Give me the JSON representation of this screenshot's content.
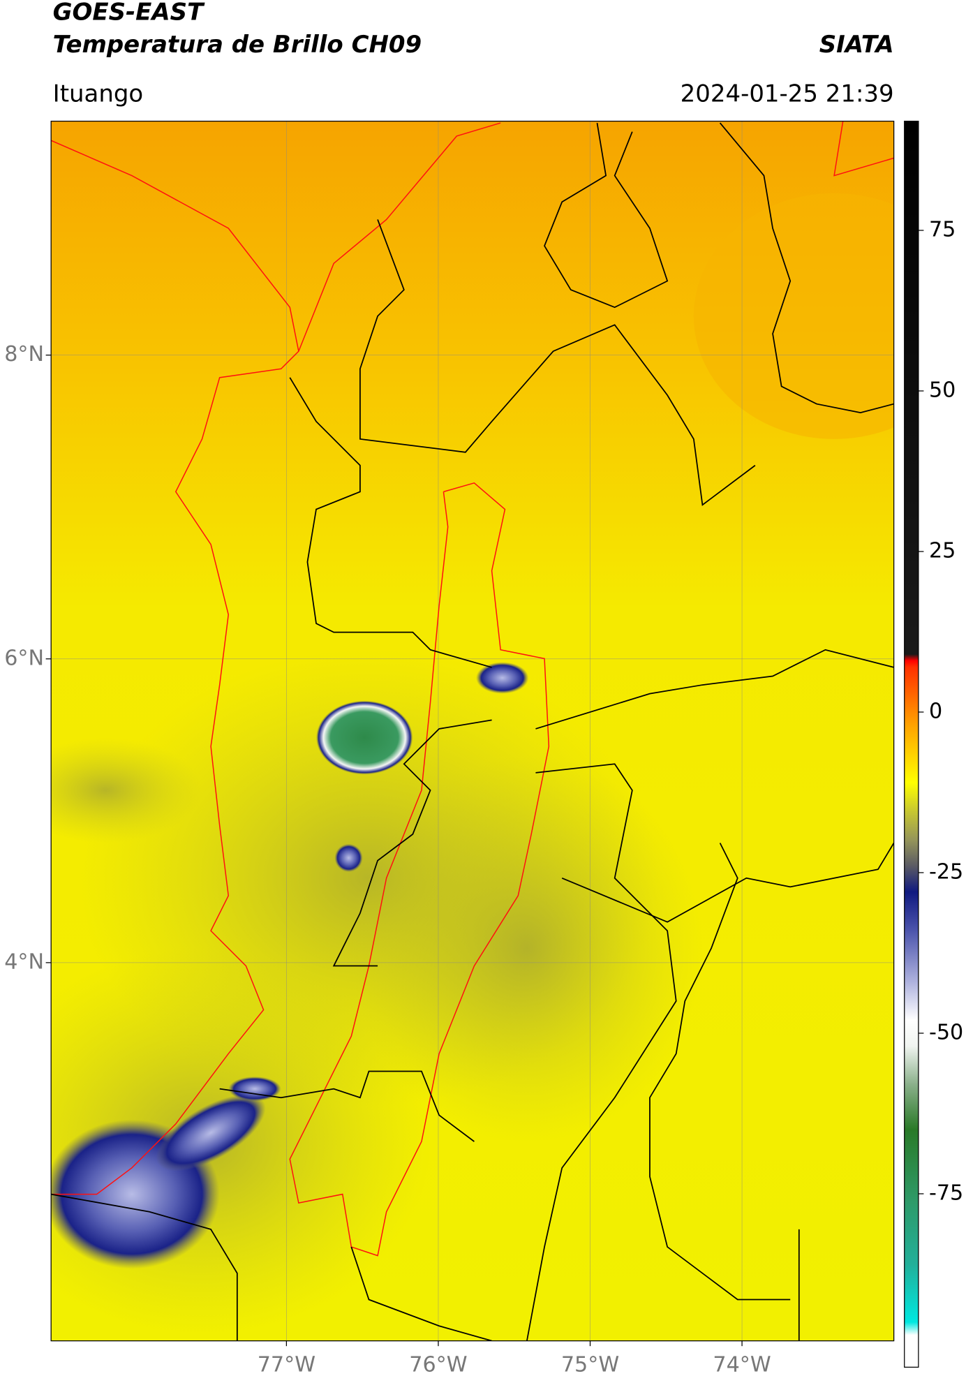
{
  "chart_data": {
    "type": "map",
    "title": "GOES-EAST",
    "subtitle": "Temperatura de Brillo CH09",
    "source": "SIATA",
    "location": "Ituango",
    "timestamp": "2024-01-25 21:39",
    "xlim": [
      -78.55,
      -73.0
    ],
    "ylim": [
      1.51,
      9.54
    ],
    "xticks": [
      {
        "value": -77,
        "label": "77°W"
      },
      {
        "value": -76,
        "label": "76°W"
      },
      {
        "value": -75,
        "label": "75°W"
      },
      {
        "value": -74,
        "label": "74°W"
      }
    ],
    "yticks": [
      {
        "value": 8,
        "label": "8°N"
      },
      {
        "value": 6,
        "label": "6°N"
      },
      {
        "value": 4,
        "label": "4°N"
      }
    ],
    "grid": true,
    "colorbar": {
      "lim": [
        -102,
        92
      ],
      "ticks": [
        75,
        50,
        25,
        0,
        -25,
        -50,
        -75
      ],
      "stops": [
        {
          "value": -102,
          "color": "#ffffff"
        },
        {
          "value": -97,
          "color": "#ffffff"
        },
        {
          "value": -95,
          "color": "#00e8e0"
        },
        {
          "value": -86,
          "color": "#22b09a"
        },
        {
          "value": -76,
          "color": "#2e9a68"
        },
        {
          "value": -65,
          "color": "#2a7a28"
        },
        {
          "value": -58,
          "color": "#8ab08a"
        },
        {
          "value": -52,
          "color": "#f0f4f0"
        },
        {
          "value": -48,
          "color": "#ffffff"
        },
        {
          "value": -42,
          "color": "#aeb2de"
        },
        {
          "value": -34,
          "color": "#4c54ac"
        },
        {
          "value": -28,
          "color": "#101a80"
        },
        {
          "value": -24,
          "color": "#5a5a64"
        },
        {
          "value": -20,
          "color": "#94945a"
        },
        {
          "value": -15,
          "color": "#cccc2c"
        },
        {
          "value": -11,
          "color": "#ffff00"
        },
        {
          "value": -2,
          "color": "#ffa200"
        },
        {
          "value": 7,
          "color": "#ff3000"
        },
        {
          "value": 8,
          "color": "#ff0000"
        },
        {
          "value": 9,
          "color": "#1a1a1a"
        },
        {
          "value": 92,
          "color": "#000000"
        }
      ]
    }
  }
}
